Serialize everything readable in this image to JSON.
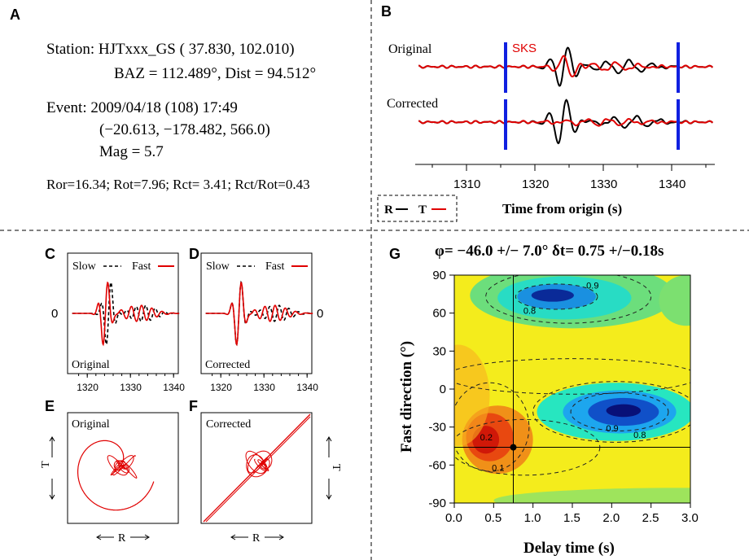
{
  "panels": {
    "A": "A",
    "B": "B",
    "C": "C",
    "D": "D",
    "E": "E",
    "F": "F",
    "G": "G"
  },
  "panel_a": {
    "station": "Station: HJTxxx_GS ( 37.830,  102.010)",
    "baz_dist": "BAZ = 112.489°, Dist = 94.512°",
    "event": "Event: 2009/04/18 (108)  17:49",
    "event_loc": "(−20.613, −178.482, 566.0)",
    "mag": "Mag = 5.7",
    "ratios": "Ror=16.34; Rot=7.96; Rct= 3.41; Rct/Rot=0.43"
  },
  "panel_b": {
    "original": "Original",
    "corrected": "Corrected",
    "phase": "SKS",
    "xticks": [
      "1310",
      "1320",
      "1330",
      "1340"
    ],
    "xlabel": "Time from origin (s)",
    "legend_r": "R",
    "legend_t": "T",
    "window_start": 1315.8,
    "window_end": 1340.6
  },
  "panel_cd": {
    "slow": "Slow",
    "fast": "Fast",
    "zero": "0",
    "original": "Original",
    "corrected": "Corrected",
    "xticks": [
      "1320",
      "1330",
      "1340"
    ]
  },
  "panel_ef": {
    "original": "Original",
    "corrected": "Corrected",
    "axis_r": "R",
    "axis_t": "T"
  },
  "chart_data": {
    "type": "heatmap",
    "title": "φ= −46.0 +/− 7.0°  δt= 0.75 +/−0.18s",
    "xlabel": "Delay time (s)",
    "ylabel": "Fast direction (°)",
    "xlim": [
      0.0,
      3.0
    ],
    "ylim": [
      -90,
      90
    ],
    "xticks": [
      "0.0",
      "0.5",
      "1.0",
      "1.5",
      "2.0",
      "2.5",
      "3.0"
    ],
    "yticks": [
      "90",
      "60",
      "30",
      "0",
      "-30",
      "-60",
      "-90"
    ],
    "contour_labels": [
      "0.9",
      "0.8",
      "0.9",
      "0.8",
      "0.2",
      "0.1"
    ],
    "best_fit": {
      "delay": 0.75,
      "fast_direction": -46.0
    },
    "colors": {
      "high": "#d01808",
      "mid": "#f8f020",
      "low": "#081078"
    }
  }
}
